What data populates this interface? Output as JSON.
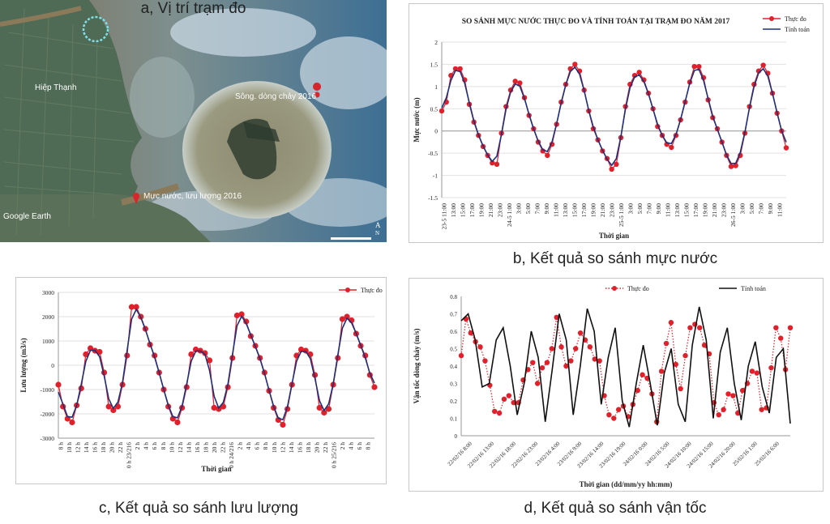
{
  "captions": {
    "a": "a, Vị trí trạm đo",
    "b": "b, Kết quả so sánh mực nước",
    "c": "c, Kết quả so sánh lưu lượng",
    "d": "d, Kết quả so sánh vận tốc"
  },
  "map": {
    "labels": {
      "town": "Hiệp Thạnh",
      "station_current": "Sông. dòng chảy 2016",
      "station_level": "Mực nước, lưu lượng 2016",
      "attribution": "Google Earth"
    },
    "colors": {
      "water": "#8a7a5a",
      "land": "#4f6a55",
      "pin": "#d7262c",
      "circle": "#7fe0e8"
    }
  },
  "chart_data": [
    {
      "id": "water-level",
      "type": "line",
      "title": "SO SÁNH MỰC NƯỚC THỰC ĐO VÀ TÍNH TOÁN TẠI TRẠM ĐO NĂM 2017",
      "xlabel": "Thời gian",
      "ylabel": "Mực nước (m)",
      "ylim": [
        -1.5,
        2
      ],
      "yticks": [
        "2",
        "1.5",
        "1",
        "0.5",
        "0",
        "-0.5",
        "-1",
        "-1.5"
      ],
      "legend": {
        "position": "top-right"
      },
      "x_ticks": [
        "23-5 11:00",
        "13:00",
        "15:00",
        "17:00",
        "19:00",
        "21:00",
        "23:00",
        "24-5 1:00",
        "3:00",
        "5:00",
        "7:00",
        "9:00",
        "11:00",
        "13:00",
        "15:00",
        "17:00",
        "19:00",
        "21:00",
        "23:00",
        "25-5 1:00",
        "3:00",
        "5:00",
        "7:00",
        "9:00",
        "11:00",
        "13:00",
        "15:00",
        "17:00",
        "19:00",
        "21:00",
        "23:00",
        "26-5 1:00",
        "3:00",
        "5:00",
        "7:00",
        "9:00",
        "11:00"
      ],
      "series": [
        {
          "name": "Thực đo",
          "color": "#e0202a",
          "marker": "circle",
          "values": [
            0.45,
            0.65,
            1.25,
            1.4,
            1.4,
            1.15,
            0.6,
            0.2,
            -0.1,
            -0.35,
            -0.55,
            -0.72,
            -0.75,
            -0.05,
            0.55,
            0.92,
            1.12,
            1.08,
            0.75,
            0.35,
            0.05,
            -0.25,
            -0.45,
            -0.55,
            -0.3,
            0.15,
            0.65,
            1.05,
            1.4,
            1.5,
            1.35,
            0.92,
            0.45,
            0.05,
            -0.2,
            -0.45,
            -0.62,
            -0.86,
            -0.75,
            -0.15,
            0.55,
            1.05,
            1.25,
            1.32,
            1.15,
            0.85,
            0.5,
            0.1,
            -0.1,
            -0.3,
            -0.37,
            -0.1,
            0.25,
            0.65,
            1.1,
            1.45,
            1.45,
            1.2,
            0.7,
            0.3,
            0.05,
            -0.25,
            -0.55,
            -0.8,
            -0.78,
            -0.55,
            -0.05,
            0.55,
            1.05,
            1.35,
            1.48,
            1.3,
            0.85,
            0.4,
            0.0,
            -0.38
          ]
        },
        {
          "name": "Tính toán",
          "color": "#1f2f7a",
          "marker": "none",
          "values": []
        }
      ]
    },
    {
      "id": "discharge",
      "type": "line",
      "xlabel": "Thời gian",
      "ylabel": "Lưu lượng (m3/s)",
      "ylim": [
        -3000,
        3000
      ],
      "yticks": [
        "3000",
        "2000",
        "1000",
        "0",
        "-1000",
        "-2000",
        "-3000"
      ],
      "legend": {
        "position": "top-right"
      },
      "x_ticks": [
        "8 h",
        "10 h",
        "12 h",
        "14 h",
        "16 h",
        "18 h",
        "20 h",
        "22 h",
        "0 h 23/216",
        "2 h",
        "4 h",
        "6 h",
        "8 h",
        "10 h",
        "12 h",
        "14 h",
        "16 h",
        "18 h",
        "20 h",
        "22 h",
        "0 h 24/216",
        "2 h",
        "4 h",
        "6 h",
        "8 h",
        "10 h",
        "12 h",
        "14 h",
        "16 h",
        "18 h",
        "20 h",
        "22 h",
        "0 h 25/216",
        "2 h",
        "4 h",
        "6 h",
        "8 h"
      ],
      "series": [
        {
          "name": "Thực đo",
          "color": "#e0202a",
          "marker": "circle",
          "values": [
            -800,
            -1700,
            -2200,
            -2350,
            -1650,
            -950,
            450,
            700,
            600,
            550,
            -300,
            -1700,
            -1850,
            -1700,
            -800,
            400,
            2400,
            2400,
            2000,
            1500,
            850,
            400,
            -300,
            -1000,
            -1700,
            -2200,
            -2350,
            -1750,
            -900,
            450,
            650,
            600,
            500,
            200,
            -1750,
            -1800,
            -1700,
            -900,
            300,
            2050,
            2100,
            1800,
            1200,
            800,
            300,
            -300,
            -1050,
            -1750,
            -2250,
            -2450,
            -1800,
            -800,
            400,
            650,
            600,
            450,
            -400,
            -1750,
            -1950,
            -1800,
            -800,
            300,
            1900,
            2000,
            1850,
            1300,
            800,
            400,
            -400,
            -900
          ]
        },
        {
          "name": "",
          "color": "#1f2f7a",
          "marker": "none",
          "values": []
        }
      ]
    },
    {
      "id": "velocity",
      "type": "line",
      "xlabel": "Thời gian (dd/mm/yy hh:mm)",
      "ylabel": "Vận tốc dòng chảy (m/s)",
      "ylim": [
        0,
        0.8
      ],
      "yticks": [
        "0.8",
        "0.7",
        "0.6",
        "0.5",
        "0.4",
        "0.3",
        "0.2",
        "0.1",
        "0"
      ],
      "legend": {
        "position": "top"
      },
      "x_ticks": [
        "22/02/16 8:00",
        "22/02/16 13:00",
        "22/02/16 18:00",
        "22/02/16 23:00",
        "23/02/16 4:00",
        "23/02/16 9:00",
        "23/02/16 14:00",
        "23/02/16 19:00",
        "24/02/16 0:00",
        "24/02/16 5:00",
        "24/02/16 10:00",
        "24/02/16 15:00",
        "24/02/16 20:00",
        "25/02/16 1:00",
        "25/02/16 6:00"
      ],
      "series": [
        {
          "name": "Thực đo",
          "color": "#e0202a",
          "marker": "circle",
          "dotted": true,
          "values": [
            0.46,
            0.67,
            0.59,
            0.54,
            0.51,
            0.43,
            0.29,
            0.14,
            0.13,
            0.21,
            0.23,
            0.19,
            0.19,
            0.32,
            0.38,
            0.42,
            0.3,
            0.39,
            0.42,
            0.5,
            0.68,
            0.51,
            0.4,
            0.43,
            0.5,
            0.59,
            0.55,
            0.51,
            0.44,
            0.43,
            0.23,
            0.12,
            0.1,
            0.15,
            0.17,
            0.11,
            0.18,
            0.26,
            0.35,
            0.33,
            0.24,
            0.08,
            0.37,
            0.53,
            0.65,
            0.41,
            0.27,
            0.46,
            0.62,
            0.64,
            0.62,
            0.52,
            0.47,
            0.19,
            0.12,
            0.15,
            0.24,
            0.23,
            0.13,
            0.26,
            0.3,
            0.37,
            0.36,
            0.15,
            0.16,
            0.39,
            0.62,
            0.56,
            0.38,
            0.62
          ]
        },
        {
          "name": "Tính toán",
          "color": "#111111",
          "marker": "none",
          "values": [
            0.66,
            0.7,
            0.55,
            0.28,
            0.3,
            0.55,
            0.62,
            0.4,
            0.12,
            0.3,
            0.6,
            0.45,
            0.08,
            0.38,
            0.7,
            0.55,
            0.12,
            0.4,
            0.73,
            0.6,
            0.18,
            0.45,
            0.62,
            0.2,
            0.05,
            0.3,
            0.52,
            0.3,
            0.06,
            0.36,
            0.5,
            0.18,
            0.08,
            0.52,
            0.74,
            0.55,
            0.1,
            0.48,
            0.62,
            0.3,
            0.09,
            0.4,
            0.54,
            0.28,
            0.13,
            0.45,
            0.5,
            0.07
          ]
        }
      ]
    }
  ]
}
